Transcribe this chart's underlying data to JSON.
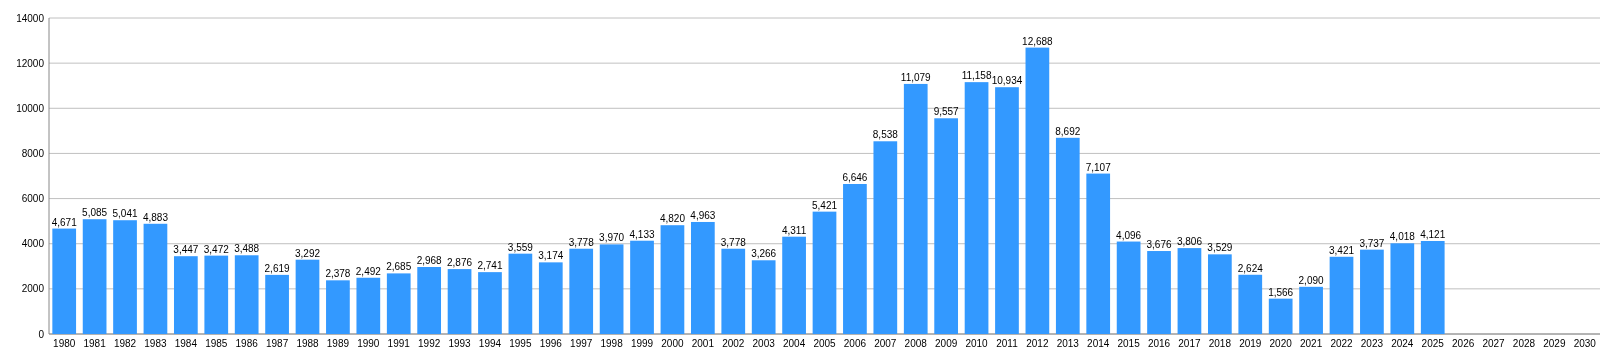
{
  "chart_data": {
    "type": "bar",
    "categories": [
      "1980",
      "1981",
      "1982",
      "1983",
      "1984",
      "1985",
      "1986",
      "1987",
      "1988",
      "1989",
      "1990",
      "1991",
      "1992",
      "1993",
      "1994",
      "1995",
      "1996",
      "1997",
      "1998",
      "1999",
      "2000",
      "2001",
      "2002",
      "2003",
      "2004",
      "2005",
      "2006",
      "2007",
      "2008",
      "2009",
      "2010",
      "2011",
      "2012",
      "2013",
      "2014",
      "2015",
      "2016",
      "2017",
      "2018",
      "2019",
      "2020",
      "2021",
      "2022",
      "2023",
      "2024",
      "2025",
      "2026",
      "2027",
      "2028",
      "2029",
      "2030"
    ],
    "values": [
      4671,
      5085,
      5041,
      4883,
      3447,
      3472,
      3488,
      2619,
      3292,
      2378,
      2492,
      2685,
      2968,
      2876,
      2741,
      3559,
      3174,
      3778,
      3970,
      4133,
      4820,
      4963,
      3778,
      3266,
      4311,
      5421,
      6646,
      8538,
      11079,
      9557,
      11158,
      10934,
      12688,
      8692,
      7107,
      4096,
      3676,
      3806,
      3529,
      2624,
      1566,
      2090,
      3421,
      3737,
      4018,
      4121,
      null,
      null,
      null,
      null,
      null
    ],
    "value_labels": [
      "4,671",
      "5,085",
      "5,041",
      "4,883",
      "3,447",
      "3,472",
      "3,488",
      "2,619",
      "3,292",
      "2,378",
      "2,492",
      "2,685",
      "2,968",
      "2,876",
      "2,741",
      "3,559",
      "3,174",
      "3,778",
      "3,970",
      "4,133",
      "4,820",
      "4,963",
      "3,778",
      "3,266",
      "4,311",
      "5,421",
      "6,646",
      "8,538",
      "11,079",
      "9,557",
      "11,158",
      "10,934",
      "12,688",
      "8,692",
      "7,107",
      "4,096",
      "3,676",
      "3,806",
      "3,529",
      "2,624",
      "1,566",
      "2,090",
      "3,421",
      "3,737",
      "4,018",
      "4,121",
      null,
      null,
      null,
      null,
      null
    ],
    "color": "#3399ff",
    "ylim": [
      0,
      14000
    ],
    "yticks": [
      0,
      2000,
      4000,
      6000,
      8000,
      10000,
      12000,
      14000
    ],
    "grid": "y"
  }
}
